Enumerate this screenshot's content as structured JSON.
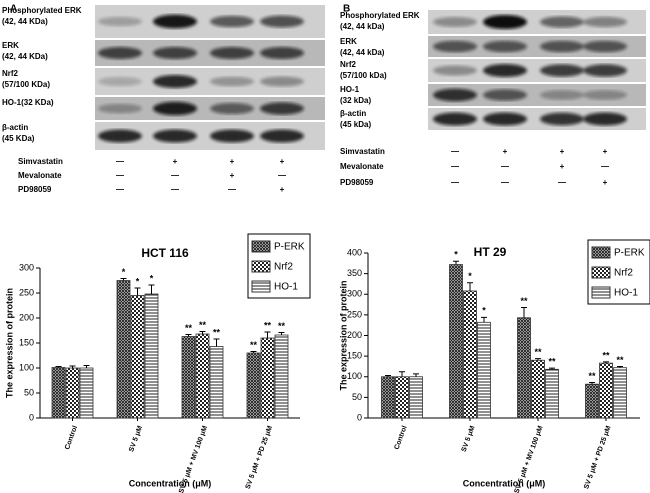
{
  "blots": [
    {
      "panel": "A",
      "rows": [
        [
          "Phosphorylated ERK",
          "(42, 44 KDa)"
        ],
        [
          "ERK",
          "(42, 44 KDa)"
        ],
        [
          "Nrf2",
          "(57/100 KDa)"
        ],
        [
          "HO-1(32 KDa)"
        ],
        [
          "β-actin",
          "(45 KDa)"
        ]
      ],
      "treatments": [
        {
          "name": "Simvastatin",
          "marks": [
            "—",
            "+",
            "+",
            "+"
          ]
        },
        {
          "name": "Mevalonate",
          "marks": [
            "—",
            "—",
            "+",
            "—"
          ]
        },
        {
          "name": "PD98059",
          "marks": [
            "—",
            "—",
            "—",
            "+"
          ]
        }
      ]
    },
    {
      "panel": "B",
      "rows": [
        [
          "Phosphorylated ERK",
          "(42, 44 kDa)"
        ],
        [
          "ERK",
          "(42, 44 kDa)"
        ],
        [
          "Nrf2",
          "(57/100 kDa)"
        ],
        [
          "HO-1",
          "(32 kDa)"
        ],
        [
          "β-actin",
          "(45 kDa)"
        ]
      ],
      "treatments": [
        {
          "name": "Simvastatin",
          "marks": [
            "—",
            "+",
            "+",
            "+"
          ]
        },
        {
          "name": "Mevalonate",
          "marks": [
            "—",
            "—",
            "+",
            "—"
          ]
        },
        {
          "name": "PD98059",
          "marks": [
            "—",
            "—",
            "—",
            "+"
          ]
        }
      ]
    }
  ],
  "chart_data": [
    {
      "type": "bar",
      "title": "HCT 116",
      "x_label": "Concentration (μM)",
      "y_label": "The expression of protein",
      "categories": [
        "Control",
        "SV 5 μM",
        "SV 5 μM + MV 100 μM",
        "SV 5 μM + PD 25 μM"
      ],
      "ylim": [
        0,
        300
      ],
      "yticks": [
        0,
        50,
        100,
        150,
        200,
        250,
        300
      ],
      "legend": "top-right",
      "series": [
        {
          "name": "P-ERK",
          "color": "#333333",
          "pattern": "crosshatch",
          "values": [
            101,
            275,
            163,
            130
          ],
          "errors": [
            2,
            4,
            4,
            3
          ],
          "significance": [
            null,
            "*",
            "**",
            "**"
          ]
        },
        {
          "name": "Nrf2",
          "color": "#333333",
          "pattern": "checker",
          "values": [
            100,
            245,
            168,
            160
          ],
          "errors": [
            4,
            15,
            5,
            12
          ],
          "significance": [
            null,
            "*",
            "**",
            "**"
          ]
        },
        {
          "name": "HO-1",
          "color": "#333333",
          "pattern": "hstripe",
          "values": [
            100,
            248,
            143,
            166
          ],
          "errors": [
            5,
            18,
            15,
            5
          ],
          "significance": [
            null,
            "*",
            "**",
            "**"
          ]
        }
      ]
    },
    {
      "type": "bar",
      "title": "HT 29",
      "x_label": "Concentration (μM)",
      "y_label": "The expression of protein",
      "categories": [
        "Control",
        "SV 5 μM",
        "SV 5 μM + MV 100 μM",
        "SV 5 μM + PD 25 μM"
      ],
      "ylim": [
        0,
        400
      ],
      "yticks": [
        0,
        50,
        100,
        150,
        200,
        250,
        300,
        350,
        400
      ],
      "legend": "top-right",
      "series": [
        {
          "name": "P-ERK",
          "color": "#333333",
          "pattern": "crosshatch",
          "values": [
            100,
            372,
            243,
            82
          ],
          "errors": [
            3,
            8,
            25,
            4
          ],
          "significance": [
            null,
            "*",
            "**",
            "**"
          ]
        },
        {
          "name": "Nrf2",
          "color": "#333333",
          "pattern": "checker",
          "values": [
            100,
            308,
            140,
            133
          ],
          "errors": [
            12,
            20,
            4,
            3
          ],
          "significance": [
            null,
            "*",
            "**",
            "**"
          ]
        },
        {
          "name": "HO-1",
          "color": "#333333",
          "pattern": "hstripe",
          "values": [
            100,
            232,
            118,
            122
          ],
          "errors": [
            7,
            12,
            3,
            3
          ],
          "significance": [
            null,
            "*",
            "**",
            "**"
          ]
        }
      ]
    }
  ]
}
